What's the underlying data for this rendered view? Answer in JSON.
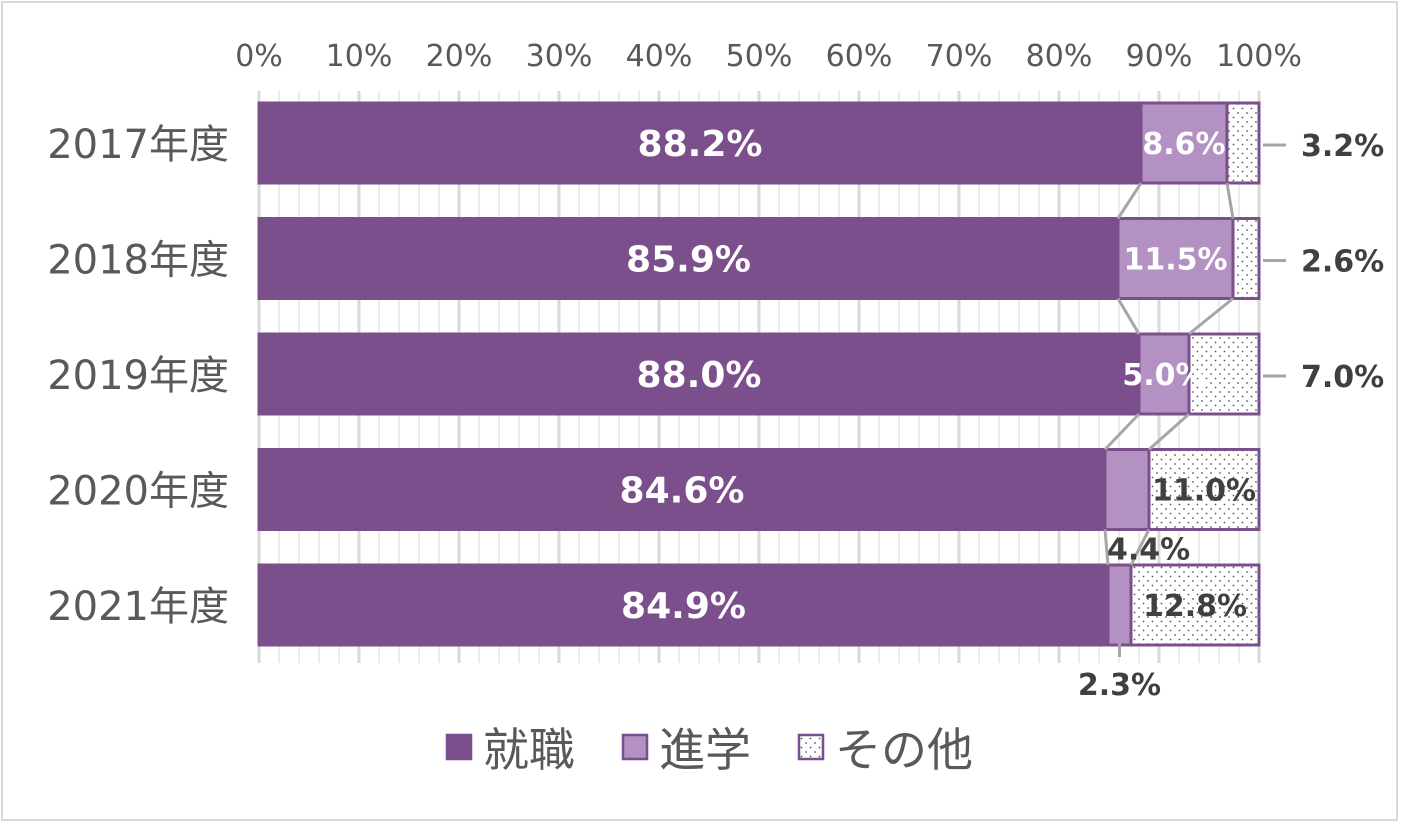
{
  "chart_data": {
    "type": "bar",
    "orientation": "horizontal",
    "stacked": "100%",
    "categories": [
      "2017年度",
      "2018年度",
      "2019年度",
      "2020年度",
      "2021年度"
    ],
    "series": [
      {
        "name": "就職",
        "values": [
          88.2,
          85.9,
          88.0,
          84.6,
          84.9
        ],
        "labels": [
          "88.2%",
          "85.9%",
          "88.0%",
          "84.6%",
          "84.9%"
        ]
      },
      {
        "name": "進学",
        "values": [
          8.6,
          11.5,
          5.0,
          4.4,
          2.3
        ],
        "labels": [
          "8.6%",
          "11.5%",
          "5.0%",
          "4.4%",
          "2.3%"
        ]
      },
      {
        "name": "その他",
        "values": [
          3.2,
          2.6,
          7.0,
          11.0,
          12.8
        ],
        "labels": [
          "3.2%",
          "2.6%",
          "7.0%",
          "11.0%",
          "12.8%"
        ]
      }
    ],
    "x_ticks": [
      "0%",
      "10%",
      "20%",
      "30%",
      "40%",
      "50%",
      "60%",
      "70%",
      "80%",
      "90%",
      "100%"
    ],
    "xlim": [
      0,
      100
    ],
    "x_axis_position": "top",
    "series_lines": true,
    "grid": true,
    "legend_position": "bottom",
    "colors": {
      "就職": "#7b4f8c",
      "進学": "#b391c2",
      "その他": "#ffffff",
      "outline": "#7b4f8c",
      "connector": "#a6a6a6",
      "grid": "#d9d9d9"
    }
  }
}
